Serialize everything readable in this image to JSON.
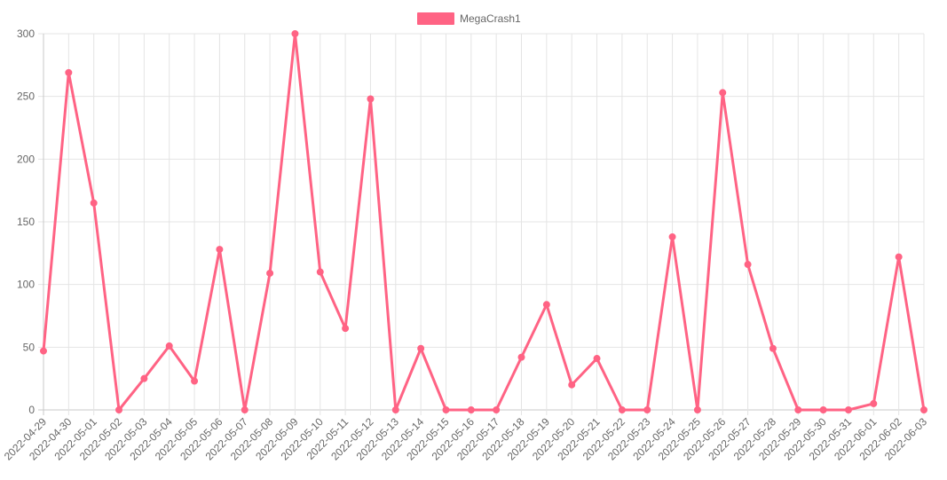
{
  "chart_data": {
    "type": "line",
    "title": "",
    "xlabel": "",
    "ylabel": "",
    "ylim": [
      0,
      300
    ],
    "yticks": [
      0,
      50,
      100,
      150,
      200,
      250,
      300
    ],
    "grid": true,
    "legend_position": "top-center",
    "categories": [
      "2022-04-29",
      "2022-04-30",
      "2022-05-01",
      "2022-05-02",
      "2022-05-03",
      "2022-05-04",
      "2022-05-05",
      "2022-05-06",
      "2022-05-07",
      "2022-05-08",
      "2022-05-09",
      "2022-05-10",
      "2022-05-11",
      "2022-05-12",
      "2022-05-13",
      "2022-05-14",
      "2022-05-15",
      "2022-05-16",
      "2022-05-17",
      "2022-05-18",
      "2022-05-19",
      "2022-05-20",
      "2022-05-21",
      "2022-05-22",
      "2022-05-23",
      "2022-05-24",
      "2022-05-25",
      "2022-05-26",
      "2022-05-27",
      "2022-05-28",
      "2022-05-29",
      "2022-05-30",
      "2022-05-31",
      "2022-06-01",
      "2022-06-02",
      "2022-06-03"
    ],
    "series": [
      {
        "name": "MegaCrash1",
        "color": "#ff6384",
        "values": [
          47,
          269,
          165,
          0,
          25,
          51,
          23,
          128,
          0,
          109,
          300,
          110,
          65,
          248,
          0,
          49,
          0,
          0,
          0,
          42,
          84,
          20,
          41,
          0,
          0,
          138,
          0,
          253,
          116,
          49,
          0,
          0,
          0,
          5,
          122,
          0
        ]
      }
    ]
  }
}
